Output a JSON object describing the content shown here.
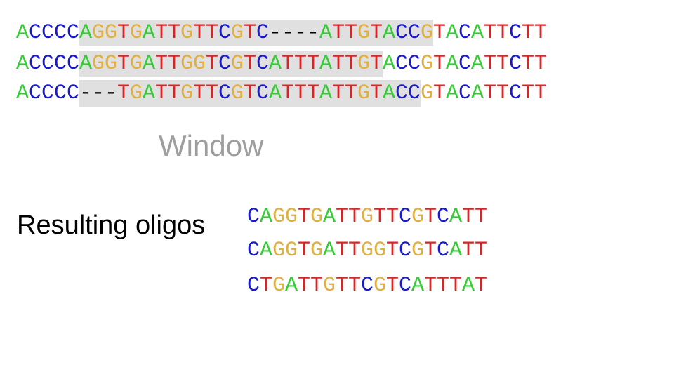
{
  "colors": {
    "A": "#33cc33",
    "C": "#1a1acc",
    "G": "#e0b040",
    "T": "#dd2222",
    "-": "#000000"
  },
  "alignment": {
    "rows": [
      {
        "sequence": "ACCCCAGGTGATTGTTCGTC----ATTGTACCGTACATTCTT",
        "window": [
          5,
          33
        ]
      },
      {
        "sequence": "ACCCCAGGTGATTGGTCGTCATTTATTGTACCGTACATTCTT",
        "window": [
          5,
          29
        ]
      },
      {
        "sequence": "ACCCC---TGATTGTTCGTCATTTATTGTACCGTACATTCTT",
        "window": [
          5,
          32
        ]
      }
    ]
  },
  "window_label": "Window",
  "result_label": "Resulting oligos",
  "oligos": [
    "CAGGTGATTGTTCGTCATT",
    "CAGGTGATTGGTCGTCATT",
    "CTGATTGTTCGTCATTTAT"
  ]
}
